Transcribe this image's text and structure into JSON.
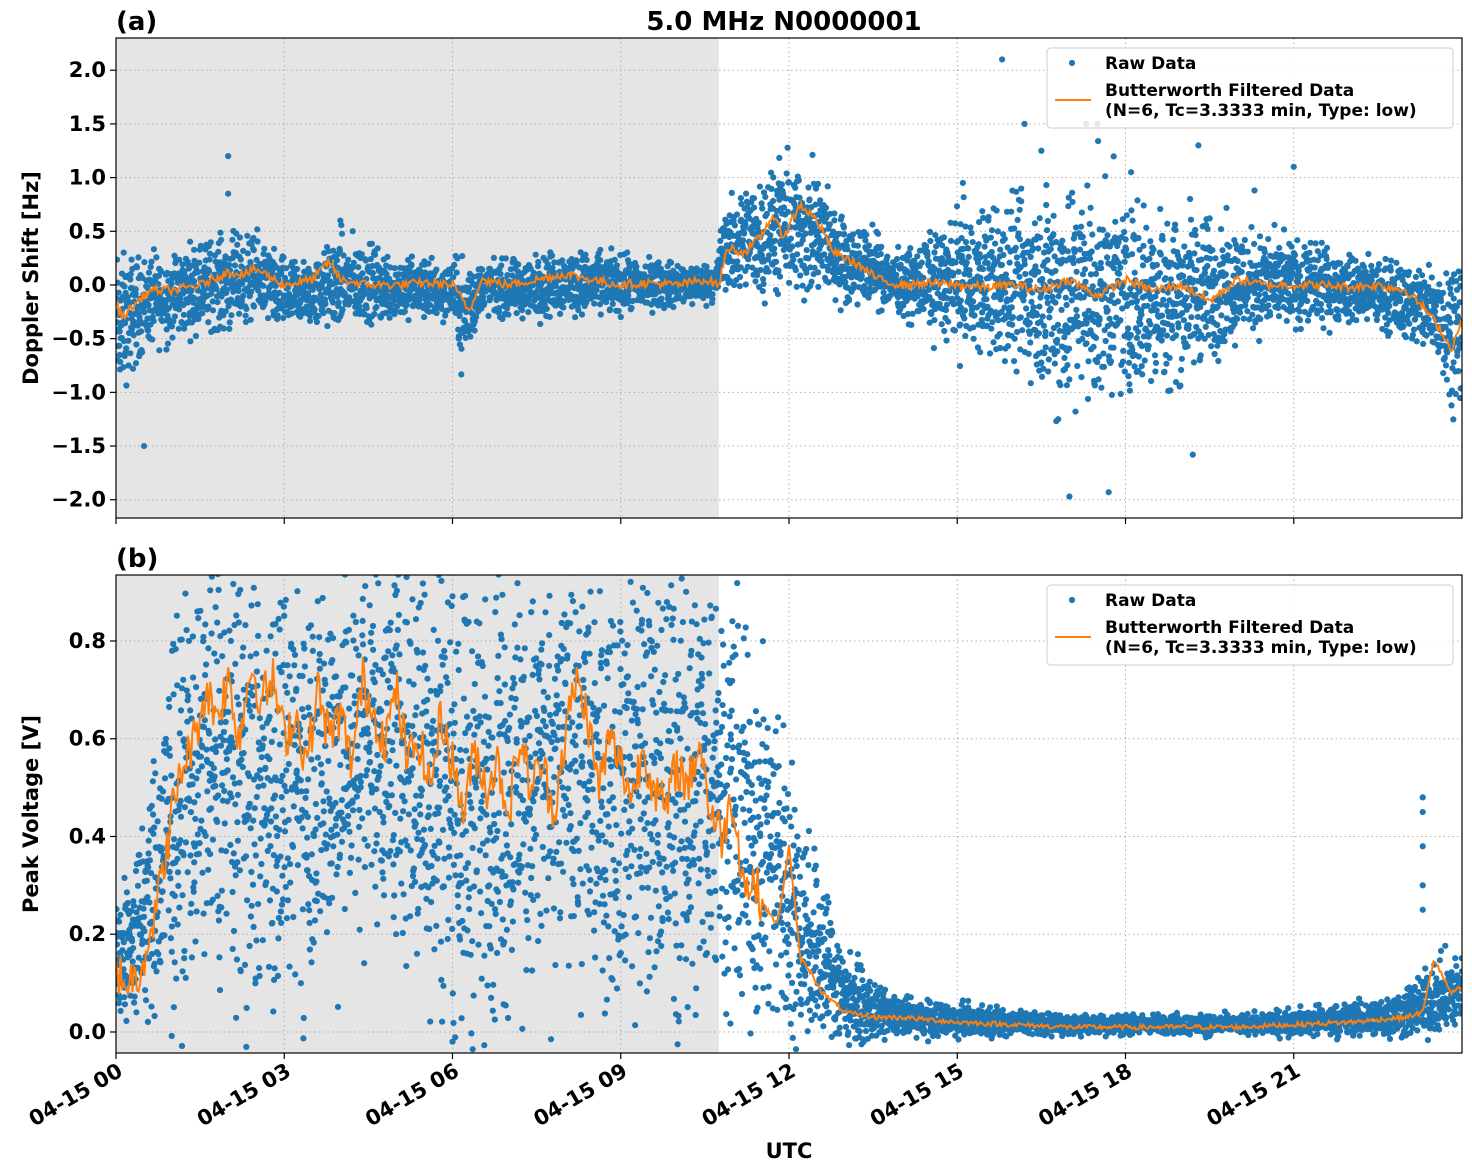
{
  "chart_data": [
    {
      "type": "scatter",
      "panel_label": "(a)",
      "title": "5.0 MHz N0000001",
      "xlabel": "",
      "ylabel": "Doppler Shift [Hz]",
      "x_range_hours": [
        0,
        24
      ],
      "ylim": [
        -2.17,
        2.3
      ],
      "yticks": [
        -2.0,
        -1.5,
        -1.0,
        -0.5,
        0.0,
        0.5,
        1.0,
        1.5,
        2.0
      ],
      "ytick_labels": [
        "−2.0",
        "−1.5",
        "−1.0",
        "−0.5",
        "0.0",
        "0.5",
        "1.0",
        "1.5",
        "2.0"
      ],
      "shaded_region_hours": [
        0,
        10.75
      ],
      "grid": true,
      "legend_position": "top-right",
      "series": [
        {
          "name": "Raw Data",
          "kind": "scatter",
          "color": "#1f77b4",
          "envelope": {
            "x": [
              0,
              0.5,
              1.0,
              1.5,
              2.0,
              2.5,
              3.0,
              3.5,
              4.0,
              5.0,
              6.0,
              6.2,
              6.5,
              7.0,
              8.0,
              9.0,
              10.0,
              10.7,
              10.8,
              11.0,
              11.5,
              12.0,
              12.5,
              13.0,
              13.5,
              14.0,
              15.0,
              16.0,
              17.0,
              17.5,
              18.0,
              19.0,
              20.0,
              21.0,
              22.0,
              23.0,
              23.5,
              24.0
            ],
            "upper": [
              0.1,
              0.15,
              0.2,
              0.3,
              0.35,
              0.35,
              0.15,
              0.15,
              0.35,
              0.2,
              0.15,
              0.1,
              0.15,
              0.15,
              0.25,
              0.2,
              0.15,
              0.15,
              0.55,
              0.7,
              0.85,
              1.0,
              0.9,
              0.5,
              0.4,
              0.2,
              0.5,
              0.55,
              0.75,
              0.7,
              0.55,
              0.5,
              0.4,
              0.3,
              0.2,
              0.1,
              0.1,
              0.1
            ],
            "lower": [
              -0.9,
              -0.5,
              -0.4,
              -0.3,
              -0.3,
              -0.2,
              -0.35,
              -0.3,
              -0.3,
              -0.25,
              -0.25,
              -0.7,
              -0.2,
              -0.25,
              -0.2,
              -0.2,
              -0.15,
              -0.1,
              0.0,
              0.05,
              0.05,
              0.05,
              0.0,
              -0.05,
              -0.1,
              -0.2,
              -0.4,
              -0.6,
              -0.9,
              -0.85,
              -0.75,
              -0.7,
              -0.35,
              -0.3,
              -0.25,
              -0.4,
              -0.6,
              -1.0
            ]
          },
          "outliers": [
            [
              0.5,
              -1.5
            ],
            [
              2.0,
              1.2
            ],
            [
              2.0,
              0.85
            ],
            [
              4.0,
              0.6
            ],
            [
              15.8,
              2.1
            ],
            [
              16.2,
              1.5
            ],
            [
              17.0,
              -1.97
            ],
            [
              17.3,
              1.5
            ],
            [
              17.5,
              1.5
            ],
            [
              17.7,
              -1.93
            ],
            [
              19.3,
              1.3
            ],
            [
              21.0,
              1.1
            ],
            [
              19.2,
              -1.58
            ],
            [
              16.8,
              -1.25
            ],
            [
              15.1,
              0.95
            ],
            [
              20.3,
              0.88
            ],
            [
              16.5,
              1.25
            ],
            [
              18.1,
              1.05
            ]
          ]
        },
        {
          "name": "Butterworth Filtered Data\n(N=6, Tc=3.3333 min, Type: low)",
          "kind": "line",
          "color": "#ff7f0e",
          "x": [
            0,
            0.1,
            0.3,
            0.6,
            1.0,
            1.5,
            2.0,
            2.3,
            2.5,
            3.0,
            3.5,
            3.8,
            4.0,
            4.5,
            5.0,
            5.5,
            6.0,
            6.2,
            6.3,
            6.5,
            7.0,
            7.5,
            8.0,
            8.5,
            9.0,
            9.5,
            10.0,
            10.5,
            10.75,
            10.9,
            11.2,
            11.5,
            11.7,
            11.9,
            12.2,
            12.5,
            12.8,
            13.2,
            13.6,
            14.0,
            14.5,
            15.0,
            15.5,
            16.0,
            16.5,
            17.0,
            17.5,
            18.0,
            18.5,
            19.0,
            19.5,
            20.0,
            20.5,
            21.0,
            21.5,
            22.0,
            22.5,
            23.0,
            23.3,
            23.6,
            23.8,
            24.0
          ],
          "y": [
            -0.15,
            -0.3,
            -0.2,
            -0.05,
            -0.05,
            0.0,
            0.12,
            0.1,
            0.15,
            0.0,
            0.05,
            0.22,
            0.05,
            0.0,
            0.0,
            0.02,
            0.0,
            -0.15,
            -0.25,
            0.05,
            0.0,
            0.05,
            0.1,
            0.05,
            0.0,
            0.02,
            0.0,
            0.05,
            0.0,
            0.35,
            0.3,
            0.45,
            0.65,
            0.45,
            0.75,
            0.6,
            0.3,
            0.2,
            0.05,
            0.0,
            0.02,
            0.0,
            -0.02,
            0.0,
            -0.05,
            0.05,
            -0.1,
            0.05,
            -0.05,
            0.0,
            -0.15,
            0.05,
            0.0,
            0.0,
            0.0,
            -0.02,
            0.0,
            -0.05,
            -0.2,
            -0.4,
            -0.6,
            -0.35
          ]
        }
      ]
    },
    {
      "type": "scatter",
      "panel_label": "(b)",
      "title": "",
      "xlabel": "UTC",
      "ylabel": "Peak Voltage [V]",
      "x_range_hours": [
        0,
        24
      ],
      "ylim": [
        -0.043,
        0.935
      ],
      "yticks": [
        0.0,
        0.2,
        0.4,
        0.6,
        0.8
      ],
      "ytick_labels": [
        "0.0",
        "0.2",
        "0.4",
        "0.6",
        "0.8"
      ],
      "xticks_hours": [
        0,
        3,
        6,
        9,
        12,
        15,
        18,
        21
      ],
      "xtick_labels": [
        "04-15 00",
        "04-15 03",
        "04-15 06",
        "04-15 09",
        "04-15 12",
        "04-15 15",
        "04-15 18",
        "04-15 21"
      ],
      "shaded_region_hours": [
        0,
        10.75
      ],
      "grid": true,
      "legend_position": "top-right",
      "series": [
        {
          "name": "Raw Data",
          "kind": "scatter",
          "color": "#1f77b4",
          "envelope": {
            "x": [
              0,
              0.3,
              0.7,
              1.0,
              1.3,
              1.6,
              2.0,
              2.5,
              3.0,
              3.5,
              4.0,
              4.5,
              5.0,
              5.5,
              6.0,
              6.5,
              7.0,
              7.5,
              8.0,
              8.5,
              9.0,
              9.5,
              10.0,
              10.5,
              10.75,
              11.0,
              11.3,
              11.6,
              11.9,
              12.1,
              12.4,
              12.7,
              13.0,
              13.5,
              14.0,
              15.0,
              16.0,
              17.0,
              18.0,
              19.0,
              20.0,
              21.0,
              22.0,
              22.5,
              23.0,
              23.5,
              24.0
            ],
            "upper": [
              0.25,
              0.3,
              0.5,
              0.7,
              0.8,
              0.85,
              0.88,
              0.88,
              0.88,
              0.87,
              0.88,
              0.88,
              0.88,
              0.88,
              0.87,
              0.85,
              0.86,
              0.86,
              0.88,
              0.87,
              0.86,
              0.87,
              0.86,
              0.86,
              0.85,
              0.8,
              0.7,
              0.65,
              0.55,
              0.45,
              0.35,
              0.25,
              0.15,
              0.08,
              0.06,
              0.05,
              0.04,
              0.03,
              0.03,
              0.03,
              0.03,
              0.04,
              0.05,
              0.06,
              0.08,
              0.12,
              0.15
            ],
            "lower": [
              0.05,
              0.06,
              0.08,
              0.12,
              0.2,
              0.25,
              0.2,
              0.15,
              0.18,
              0.2,
              0.25,
              0.35,
              0.3,
              0.2,
              0.15,
              0.12,
              0.15,
              0.2,
              0.25,
              0.2,
              0.18,
              0.15,
              0.12,
              0.2,
              0.2,
              0.15,
              0.12,
              0.1,
              0.08,
              0.05,
              0.03,
              0.01,
              0.0,
              0.0,
              0.0,
              0.0,
              0.0,
              0.0,
              0.0,
              0.0,
              0.0,
              0.0,
              0.0,
              0.0,
              0.0,
              0.01,
              0.02
            ]
          },
          "outliers": [
            [
              23.3,
              0.48
            ],
            [
              23.3,
              0.45
            ],
            [
              23.3,
              0.38
            ],
            [
              23.3,
              0.3
            ],
            [
              23.3,
              0.25
            ],
            [
              1.0,
              0.78
            ],
            [
              1.3,
              0.8
            ]
          ]
        },
        {
          "name": "Butterworth Filtered Data\n(N=6, Tc=3.3333 min, Type: low)",
          "kind": "line",
          "color": "#ff7f0e",
          "x": [
            0,
            0.2,
            0.4,
            0.6,
            0.8,
            1.0,
            1.2,
            1.4,
            1.6,
            1.8,
            2.0,
            2.2,
            2.4,
            2.6,
            2.8,
            3.0,
            3.2,
            3.4,
            3.6,
            3.8,
            4.0,
            4.2,
            4.4,
            4.6,
            4.8,
            5.0,
            5.2,
            5.4,
            5.6,
            5.8,
            6.0,
            6.2,
            6.4,
            6.6,
            6.8,
            7.0,
            7.2,
            7.4,
            7.6,
            7.8,
            8.0,
            8.2,
            8.4,
            8.6,
            8.8,
            9.0,
            9.2,
            9.4,
            9.6,
            9.8,
            10.0,
            10.2,
            10.4,
            10.6,
            10.8,
            11.0,
            11.2,
            11.4,
            11.6,
            11.8,
            12.0,
            12.2,
            12.4,
            12.6,
            12.8,
            13.0,
            13.5,
            14.0,
            15.0,
            16.0,
            17.0,
            18.0,
            19.0,
            20.0,
            21.0,
            22.0,
            22.5,
            23.0,
            23.3,
            23.5,
            23.8,
            24.0
          ],
          "y": [
            0.13,
            0.1,
            0.12,
            0.2,
            0.3,
            0.45,
            0.55,
            0.6,
            0.7,
            0.65,
            0.72,
            0.6,
            0.75,
            0.68,
            0.72,
            0.6,
            0.65,
            0.55,
            0.7,
            0.6,
            0.65,
            0.55,
            0.72,
            0.65,
            0.6,
            0.7,
            0.55,
            0.6,
            0.5,
            0.65,
            0.55,
            0.45,
            0.58,
            0.5,
            0.55,
            0.45,
            0.6,
            0.5,
            0.55,
            0.45,
            0.6,
            0.72,
            0.65,
            0.5,
            0.6,
            0.55,
            0.48,
            0.58,
            0.5,
            0.45,
            0.55,
            0.5,
            0.6,
            0.45,
            0.4,
            0.48,
            0.3,
            0.3,
            0.25,
            0.22,
            0.38,
            0.15,
            0.12,
            0.08,
            0.06,
            0.04,
            0.03,
            0.03,
            0.02,
            0.015,
            0.01,
            0.01,
            0.01,
            0.01,
            0.015,
            0.02,
            0.025,
            0.03,
            0.04,
            0.15,
            0.08,
            0.09
          ]
        }
      ]
    }
  ]
}
